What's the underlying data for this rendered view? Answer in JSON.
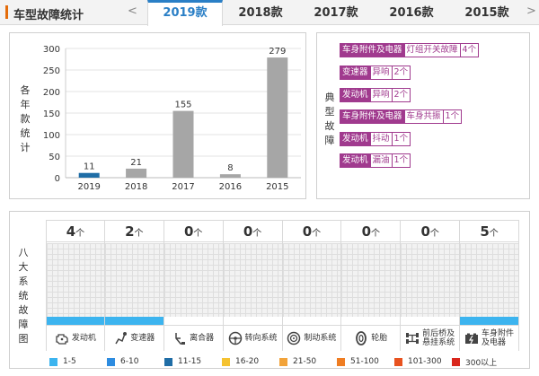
{
  "header": {
    "title": "车型故障统计",
    "prev": "<",
    "next": ">",
    "tabs": [
      {
        "label": "2019款",
        "active": true
      },
      {
        "label": "2018款",
        "active": false
      },
      {
        "label": "2017款",
        "active": false
      },
      {
        "label": "2016款",
        "active": false
      },
      {
        "label": "2015款",
        "active": false
      }
    ]
  },
  "chart_data": {
    "type": "bar",
    "ylabel": "各年款统计",
    "categories": [
      "2019",
      "2018",
      "2017",
      "2016",
      "2015"
    ],
    "values": [
      11,
      21,
      155,
      8,
      279
    ],
    "ylim": [
      0,
      300
    ],
    "yticks": [
      0,
      50,
      100,
      150,
      200,
      250,
      300
    ],
    "colors": [
      "#1f6da6",
      "#a6a6a6",
      "#a6a6a6",
      "#a6a6a6",
      "#a6a6a6"
    ],
    "grid": true
  },
  "faults": {
    "label": "典型故障",
    "rows": [
      {
        "category": "车身附件及电器",
        "issue": "灯组开关故障",
        "count": "4个"
      },
      {
        "category": "变速器",
        "issue": "异响",
        "count": "2个"
      },
      {
        "category": "发动机",
        "issue": "异响",
        "count": "2个"
      },
      {
        "category": "车身附件及电器",
        "issue": "车身共振",
        "count": "1个"
      },
      {
        "category": "发动机",
        "issue": "抖动",
        "count": "1个"
      },
      {
        "category": "发动机",
        "issue": "漏油",
        "count": "1个"
      }
    ]
  },
  "systems": {
    "label": "八大系统故障图",
    "unit": "个",
    "items": [
      {
        "name": "发动机",
        "count": "4",
        "icon": "engine-icon",
        "level": "1-5"
      },
      {
        "name": "变速器",
        "count": "2",
        "icon": "gear-shift-icon",
        "level": "1-5"
      },
      {
        "name": "离合器",
        "count": "0",
        "icon": "clutch-pedal-icon",
        "level": ""
      },
      {
        "name": "转向系统",
        "count": "0",
        "icon": "steering-wheel-icon",
        "level": ""
      },
      {
        "name": "制动系统",
        "count": "0",
        "icon": "brake-disc-icon",
        "level": ""
      },
      {
        "name": "轮胎",
        "count": "0",
        "icon": "tire-icon",
        "level": ""
      },
      {
        "name": "前后桥及悬挂系统",
        "name_lines": [
          "前后桥及",
          "悬挂系统"
        ],
        "count": "0",
        "icon": "suspension-icon",
        "level": ""
      },
      {
        "name": "车身附件及电器",
        "name_lines": [
          "车身附件",
          "及电器"
        ],
        "count": "5",
        "icon": "battery-icon",
        "level": "1-5"
      }
    ]
  },
  "legend": [
    {
      "label": "1-5",
      "color": "#3cb4ef"
    },
    {
      "label": "6-10",
      "color": "#2d8ce0"
    },
    {
      "label": "11-15",
      "color": "#1f6da6"
    },
    {
      "label": "16-20",
      "color": "#f5c230"
    },
    {
      "label": "21-50",
      "color": "#f2a33a"
    },
    {
      "label": "51-100",
      "color": "#ef7d22"
    },
    {
      "label": "101-300",
      "color": "#e8521f"
    },
    {
      "label": "300以上",
      "color": "#d9261c"
    }
  ]
}
